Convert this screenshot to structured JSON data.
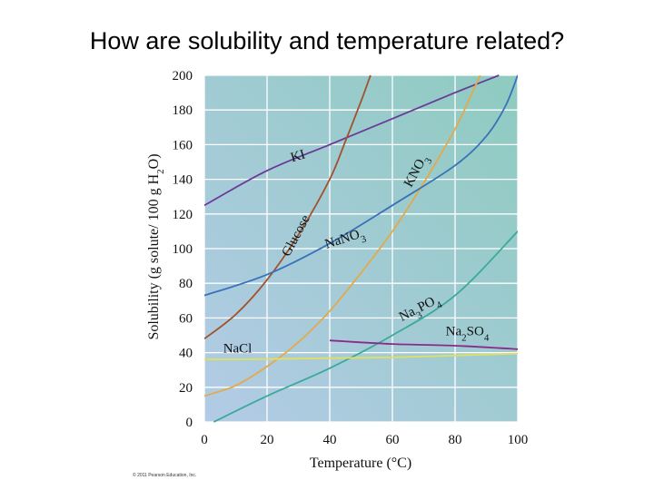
{
  "slide": {
    "title": "How are solubility and temperature related?"
  },
  "chart_data": {
    "type": "line",
    "title": "",
    "xlabel": "Temperature (°C)",
    "ylabel_parts": {
      "main": "Solubility (g solute/ 100 g H",
      "sub": "2",
      "tail": "O)"
    },
    "xlim": [
      0,
      100
    ],
    "ylim": [
      0,
      200
    ],
    "xticks": [
      0,
      20,
      40,
      60,
      80,
      100
    ],
    "yticks": [
      0,
      20,
      40,
      60,
      80,
      100,
      120,
      140,
      160,
      180,
      200
    ],
    "grid": true,
    "copyright": "© 2011 Pearson Education, Inc.",
    "colors": {
      "bg_left": "#b3cbe6",
      "bg_right": "#8ecbc0",
      "grid": "#ffffff"
    },
    "series": [
      {
        "name": "KI",
        "label_parts": [
          {
            "t": "KI"
          }
        ],
        "color": "#6a3a9a",
        "x": [
          0,
          20,
          40,
          60,
          80,
          94
        ],
        "y": [
          125,
          145,
          160,
          175,
          190,
          200
        ]
      },
      {
        "name": "Glucose",
        "label_parts": [
          {
            "t": "Glucose"
          }
        ],
        "color": "#a0522d",
        "x": [
          0,
          10,
          20,
          30,
          40,
          45,
          50,
          53
        ],
        "y": [
          48,
          62,
          82,
          108,
          140,
          162,
          185,
          200
        ]
      },
      {
        "name": "KNO3",
        "label_parts": [
          {
            "t": "KNO"
          },
          {
            "t": "3",
            "sub": true
          }
        ],
        "color": "#e3a94a",
        "x": [
          0,
          10,
          20,
          30,
          40,
          50,
          60,
          70,
          80,
          88
        ],
        "y": [
          15,
          21,
          32,
          46,
          64,
          86,
          110,
          138,
          169,
          200
        ]
      },
      {
        "name": "NaNO3",
        "label_parts": [
          {
            "t": "NaNO"
          },
          {
            "t": "3",
            "sub": true
          }
        ],
        "color": "#3a72b8",
        "x": [
          0,
          20,
          40,
          60,
          80,
          90,
          96,
          100
        ],
        "y": [
          73,
          85,
          103,
          125,
          148,
          165,
          182,
          200
        ]
      },
      {
        "name": "Na3PO4",
        "label_parts": [
          {
            "t": "Na"
          },
          {
            "t": "3",
            "sub": true
          },
          {
            "t": "PO"
          },
          {
            "t": "4",
            "sub": true
          }
        ],
        "color": "#3aaa9a",
        "x": [
          3,
          20,
          40,
          60,
          80,
          100
        ],
        "y": [
          0,
          15,
          31,
          50,
          73,
          110
        ]
      },
      {
        "name": "Na2SO4",
        "label_parts": [
          {
            "t": "Na"
          },
          {
            "t": "2",
            "sub": true
          },
          {
            "t": "SO"
          },
          {
            "t": "4",
            "sub": true
          }
        ],
        "color": "#8a2b8a",
        "x": [
          40,
          60,
          80,
          100
        ],
        "y": [
          47,
          45,
          44,
          42
        ]
      },
      {
        "name": "NaCl",
        "label_parts": [
          {
            "t": "NaCl"
          }
        ],
        "color": "#e0e060",
        "x": [
          0,
          20,
          40,
          60,
          80,
          100
        ],
        "y": [
          36,
          36.3,
          36.8,
          37.3,
          38.3,
          39.5
        ]
      }
    ]
  }
}
